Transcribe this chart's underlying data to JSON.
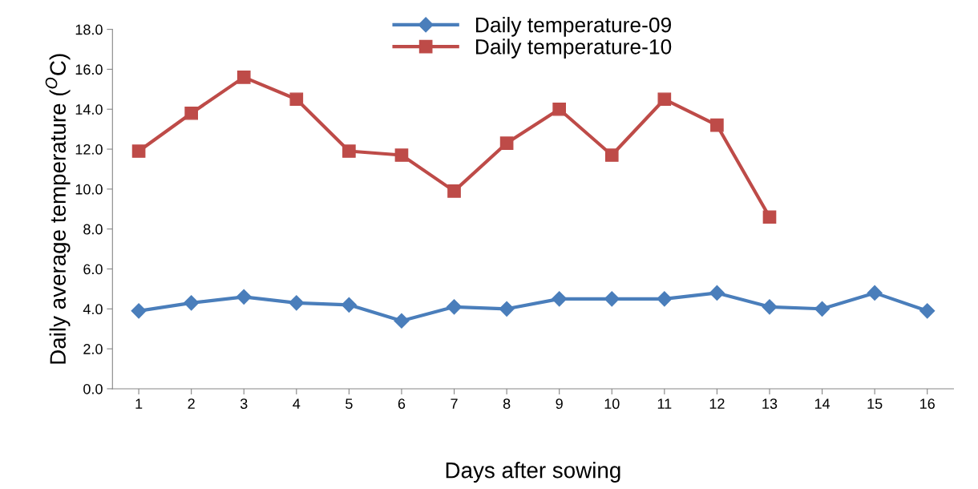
{
  "chart_data": {
    "type": "line",
    "xlabel": "Days after sowing",
    "ylabel": "Daily average temperature ($^{O}$C)",
    "categories": [
      "1",
      "2",
      "3",
      "4",
      "5",
      "6",
      "7",
      "8",
      "9",
      "10",
      "11",
      "12",
      "13",
      "14",
      "15",
      "16"
    ],
    "series": [
      {
        "name": "Daily temperature-09",
        "color": "#4a7ebb",
        "marker": "diamond",
        "values": [
          3.9,
          4.3,
          4.6,
          4.3,
          4.2,
          3.4,
          4.1,
          4.0,
          4.5,
          4.5,
          4.5,
          4.8,
          4.1,
          4.0,
          4.8,
          3.9
        ]
      },
      {
        "name": "Daily temperature-10",
        "color": "#be4b48",
        "marker": "square",
        "values": [
          11.9,
          13.8,
          15.6,
          14.5,
          11.9,
          11.7,
          9.9,
          12.3,
          14.0,
          11.7,
          14.5,
          13.2,
          8.6,
          null,
          null,
          null
        ]
      }
    ],
    "ylim": [
      0,
      18
    ],
    "yticks": [
      {
        "value": 0,
        "label": "0.0"
      },
      {
        "value": 2,
        "label": "2.0"
      },
      {
        "value": 4,
        "label": "4.0"
      },
      {
        "value": 6,
        "label": "6.0"
      },
      {
        "value": 8,
        "label": "8.0"
      },
      {
        "value": 10,
        "label": "10.0"
      },
      {
        "value": 12,
        "label": "12.0"
      },
      {
        "value": 14,
        "label": "14.0"
      },
      {
        "value": 16,
        "label": "16.0"
      },
      {
        "value": 18,
        "label": "18.0"
      }
    ],
    "grid": false,
    "legend": "top",
    "line_style": "solid"
  }
}
